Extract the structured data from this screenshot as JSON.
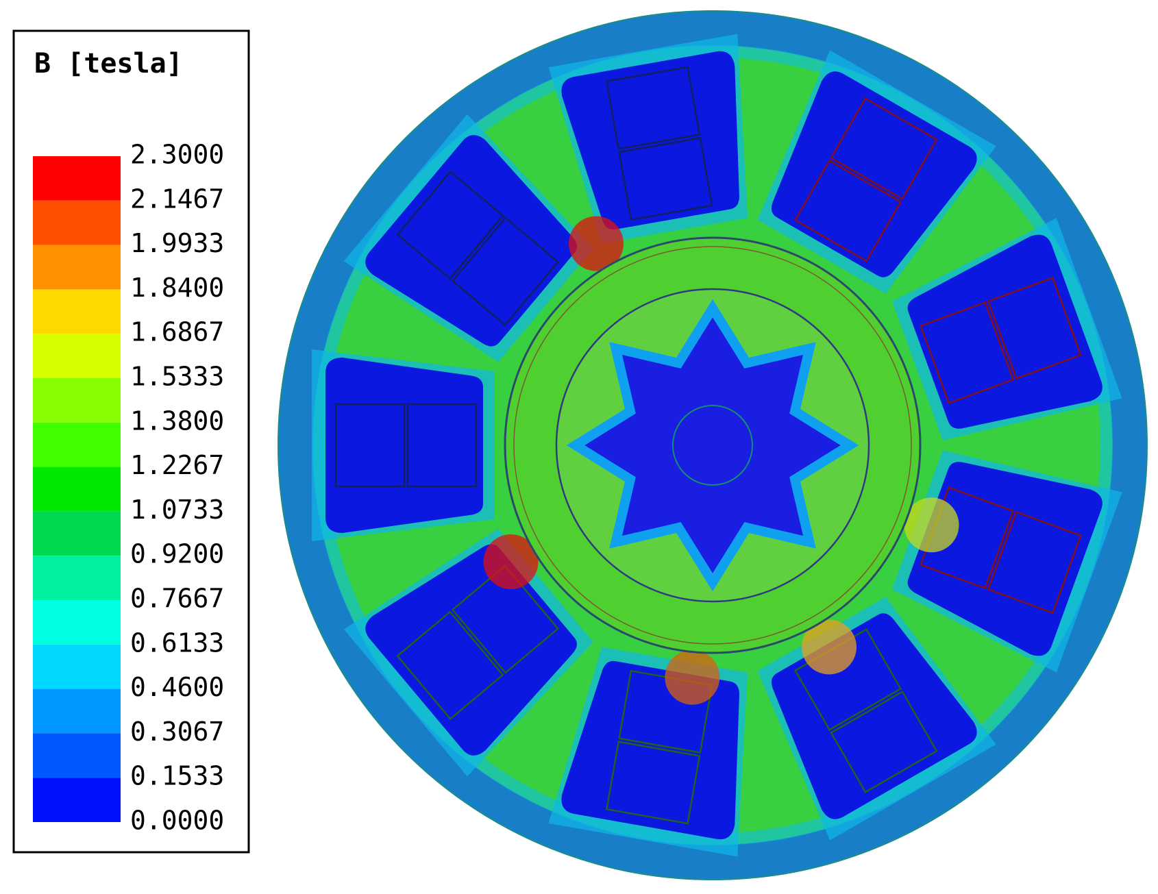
{
  "legend": {
    "title": "B [tesla]",
    "ticks": [
      {
        "value": 2.3,
        "label": "2.3000"
      },
      {
        "value": 2.1467,
        "label": "2.1467"
      },
      {
        "value": 1.9933,
        "label": "1.9933"
      },
      {
        "value": 1.84,
        "label": "1.8400"
      },
      {
        "value": 1.6867,
        "label": "1.6867"
      },
      {
        "value": 1.5333,
        "label": "1.5333"
      },
      {
        "value": 1.38,
        "label": "1.3800"
      },
      {
        "value": 1.2267,
        "label": "1.2267"
      },
      {
        "value": 1.0733,
        "label": "1.0733"
      },
      {
        "value": 0.92,
        "label": "0.9200"
      },
      {
        "value": 0.7667,
        "label": "0.7667"
      },
      {
        "value": 0.6133,
        "label": "0.6133"
      },
      {
        "value": 0.46,
        "label": "0.4600"
      },
      {
        "value": 0.3067,
        "label": "0.3067"
      },
      {
        "value": 0.1533,
        "label": "0.1533"
      },
      {
        "value": 0,
        "label": "0.0000"
      }
    ],
    "colors": [
      "#ff0000",
      "#ff5000",
      "#ff9000",
      "#ffd800",
      "#d8ff00",
      "#88ff00",
      "#40ff00",
      "#00e800",
      "#00d850",
      "#00f0a0",
      "#00ffe0",
      "#00d8ff",
      "#0098ff",
      "#0058ff",
      "#0010ff"
    ]
  }
}
